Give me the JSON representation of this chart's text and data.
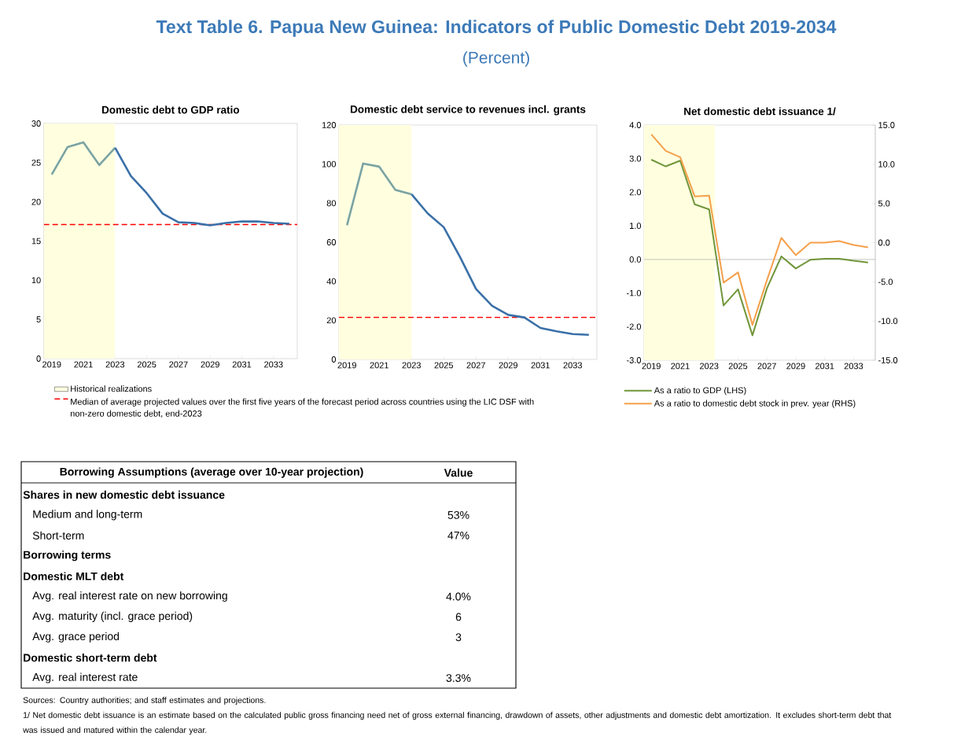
{
  "chart_data": [
    {
      "type": "other",
      "title": "Text Table 6. Papua New Guinea: Indicators of Public Domestic Debt 2019-2034",
      "subtitle": "(Percent)"
    },
    {
      "type": "line",
      "title": "Domestic debt to GDP ratio",
      "xlim": [
        2018.5,
        2034.5
      ],
      "xticks": [
        2019,
        2021,
        2023,
        2025,
        2027,
        2029,
        2031,
        2033
      ],
      "ylim": [
        0,
        30
      ],
      "yticks": [
        0,
        5,
        10,
        15,
        20,
        25,
        30
      ],
      "legend": "bottom",
      "bands": [
        {
          "axis": "x",
          "from": 2018.5,
          "to": 2023,
          "label": "Historical realizations",
          "color": "#ffffe0"
        }
      ],
      "ref_lines": [
        {
          "axis": "y",
          "value": 17.1,
          "label": "Median of average projected values over the first five years of the forecast period across countries using the LIC DSF with non-zero domestic debt, end-2023",
          "color": "#ff0000",
          "line_style": "dashed"
        }
      ],
      "series": [
        {
          "color": "#7aa3a3",
          "x": [
            2019,
            2020,
            2021,
            2022,
            2023
          ],
          "values": [
            23.5,
            27.0,
            27.6,
            24.7,
            26.9
          ]
        },
        {
          "color": "#3a70a8",
          "x": [
            2023,
            2024,
            2025,
            2026,
            2027,
            2028,
            2029,
            2030,
            2031,
            2032,
            2033,
            2034
          ],
          "values": [
            26.9,
            23.3,
            21.1,
            18.5,
            17.4,
            17.3,
            17.0,
            17.3,
            17.5,
            17.5,
            17.3,
            17.2
          ]
        }
      ]
    },
    {
      "type": "line",
      "title": "Domestic debt service to revenues incl. grants",
      "xlim": [
        2018.5,
        2034.5
      ],
      "xticks": [
        2019,
        2021,
        2023,
        2025,
        2027,
        2029,
        2031,
        2033
      ],
      "ylim": [
        0,
        120
      ],
      "yticks": [
        0,
        20,
        40,
        60,
        80,
        100,
        120
      ],
      "bands": [
        {
          "axis": "x",
          "from": 2018.5,
          "to": 2023,
          "color": "#ffffe0"
        }
      ],
      "ref_lines": [
        {
          "axis": "y",
          "value": 21.5,
          "color": "#ff0000",
          "line_style": "dashed"
        }
      ],
      "series": [
        {
          "color": "#7aa3a3",
          "x": [
            2019,
            2020,
            2021,
            2022,
            2023
          ],
          "values": [
            68.7,
            100.3,
            98.7,
            86.8,
            84.6
          ]
        },
        {
          "color": "#3a70a8",
          "x": [
            2023,
            2024,
            2025,
            2026,
            2027,
            2028,
            2029,
            2030,
            2031,
            2032,
            2033,
            2034
          ],
          "values": [
            84.6,
            74.8,
            67.7,
            52.6,
            36.1,
            27.4,
            22.8,
            21.5,
            16.1,
            14.4,
            13.0,
            12.6
          ]
        }
      ]
    },
    {
      "type": "line",
      "title": "Net domestic debt issuance 1/",
      "xlim": [
        2018.5,
        2034.5
      ],
      "xticks": [
        2019,
        2021,
        2023,
        2025,
        2027,
        2029,
        2031,
        2033
      ],
      "ylim": [
        -3,
        4
      ],
      "yticks": [
        {
          "value": -3,
          "label": "-3.0"
        },
        {
          "value": -2,
          "label": "-2.0"
        },
        {
          "value": -1,
          "label": "-1.0"
        },
        {
          "value": 0,
          "label": "0.0"
        },
        {
          "value": 1,
          "label": "1.0"
        },
        {
          "value": 2,
          "label": "2.0"
        },
        {
          "value": 3,
          "label": "3.0"
        },
        {
          "value": 4,
          "label": "4.0"
        }
      ],
      "y2lim": [
        -15,
        15
      ],
      "y2ticks": [
        {
          "value": -15,
          "label": "-15.0"
        },
        {
          "value": -10,
          "label": "-10.0"
        },
        {
          "value": -5,
          "label": "-5.0"
        },
        {
          "value": 0,
          "label": "0.0"
        },
        {
          "value": 5,
          "label": "5.0"
        },
        {
          "value": 10,
          "label": "10.0"
        },
        {
          "value": 15,
          "label": "15.0"
        }
      ],
      "legend": "bottom",
      "bands": [
        {
          "axis": "x",
          "from": 2018.5,
          "to": 2023.4,
          "color": "#ffffe0"
        }
      ],
      "ref_lines": [
        {
          "axis": "y",
          "value": 0,
          "color": "#a6a6a6"
        }
      ],
      "x": [
        2019,
        2020,
        2021,
        2022,
        2023,
        2024,
        2025,
        2026,
        2027,
        2028,
        2029,
        2030,
        2031,
        2032,
        2033,
        2034
      ],
      "series": [
        {
          "name": "As a ratio to GDP (LHS)",
          "color": "#70963a",
          "values": [
            2.97,
            2.77,
            2.94,
            1.64,
            1.49,
            -1.37,
            -0.89,
            -2.26,
            -0.86,
            0.09,
            -0.27,
            -0.01,
            0.02,
            0.02,
            -0.04,
            -0.09
          ]
        },
        {
          "name": "As a ratio to domestic debt stock in prev. year (RHS)",
          "color": "#f5a04a",
          "axis": "y2",
          "values": [
            13.8,
            11.7,
            10.9,
            5.9,
            6.0,
            -5.1,
            -3.8,
            -10.5,
            -4.8,
            0.6,
            -1.6,
            0.0,
            0.0,
            0.2,
            -0.3,
            -0.6
          ]
        }
      ]
    },
    {
      "type": "other",
      "title": "Borrowing Assumptions (average over 10-year projection)",
      "ylabel": "Value",
      "categories": [
        "Shares in new domestic debt issuance",
        "Medium and long-term",
        "Short-term",
        "Borrowing terms",
        "Domestic MLT debt",
        "Avg. real interest rate on new borrowing",
        "Avg. maturity (incl. grace period)",
        "Avg. grace period",
        "Domestic short-term debt",
        "Avg. real interest rate"
      ],
      "value_labels": [
        null,
        "53%",
        "47%",
        null,
        null,
        "4.0%",
        "6",
        "3",
        null,
        "3.3%"
      ],
      "annotations": [
        "Sources: Country authorities; and staff estimates and projections.",
        "1/ Net domestic debt issuance is an estimate based on the calculated public gross financing need net of gross external financing, drawdown of assets, other adjustments and domestic debt amortization. It excludes short-term debt that was issued and matured within the calendar year."
      ]
    }
  ]
}
